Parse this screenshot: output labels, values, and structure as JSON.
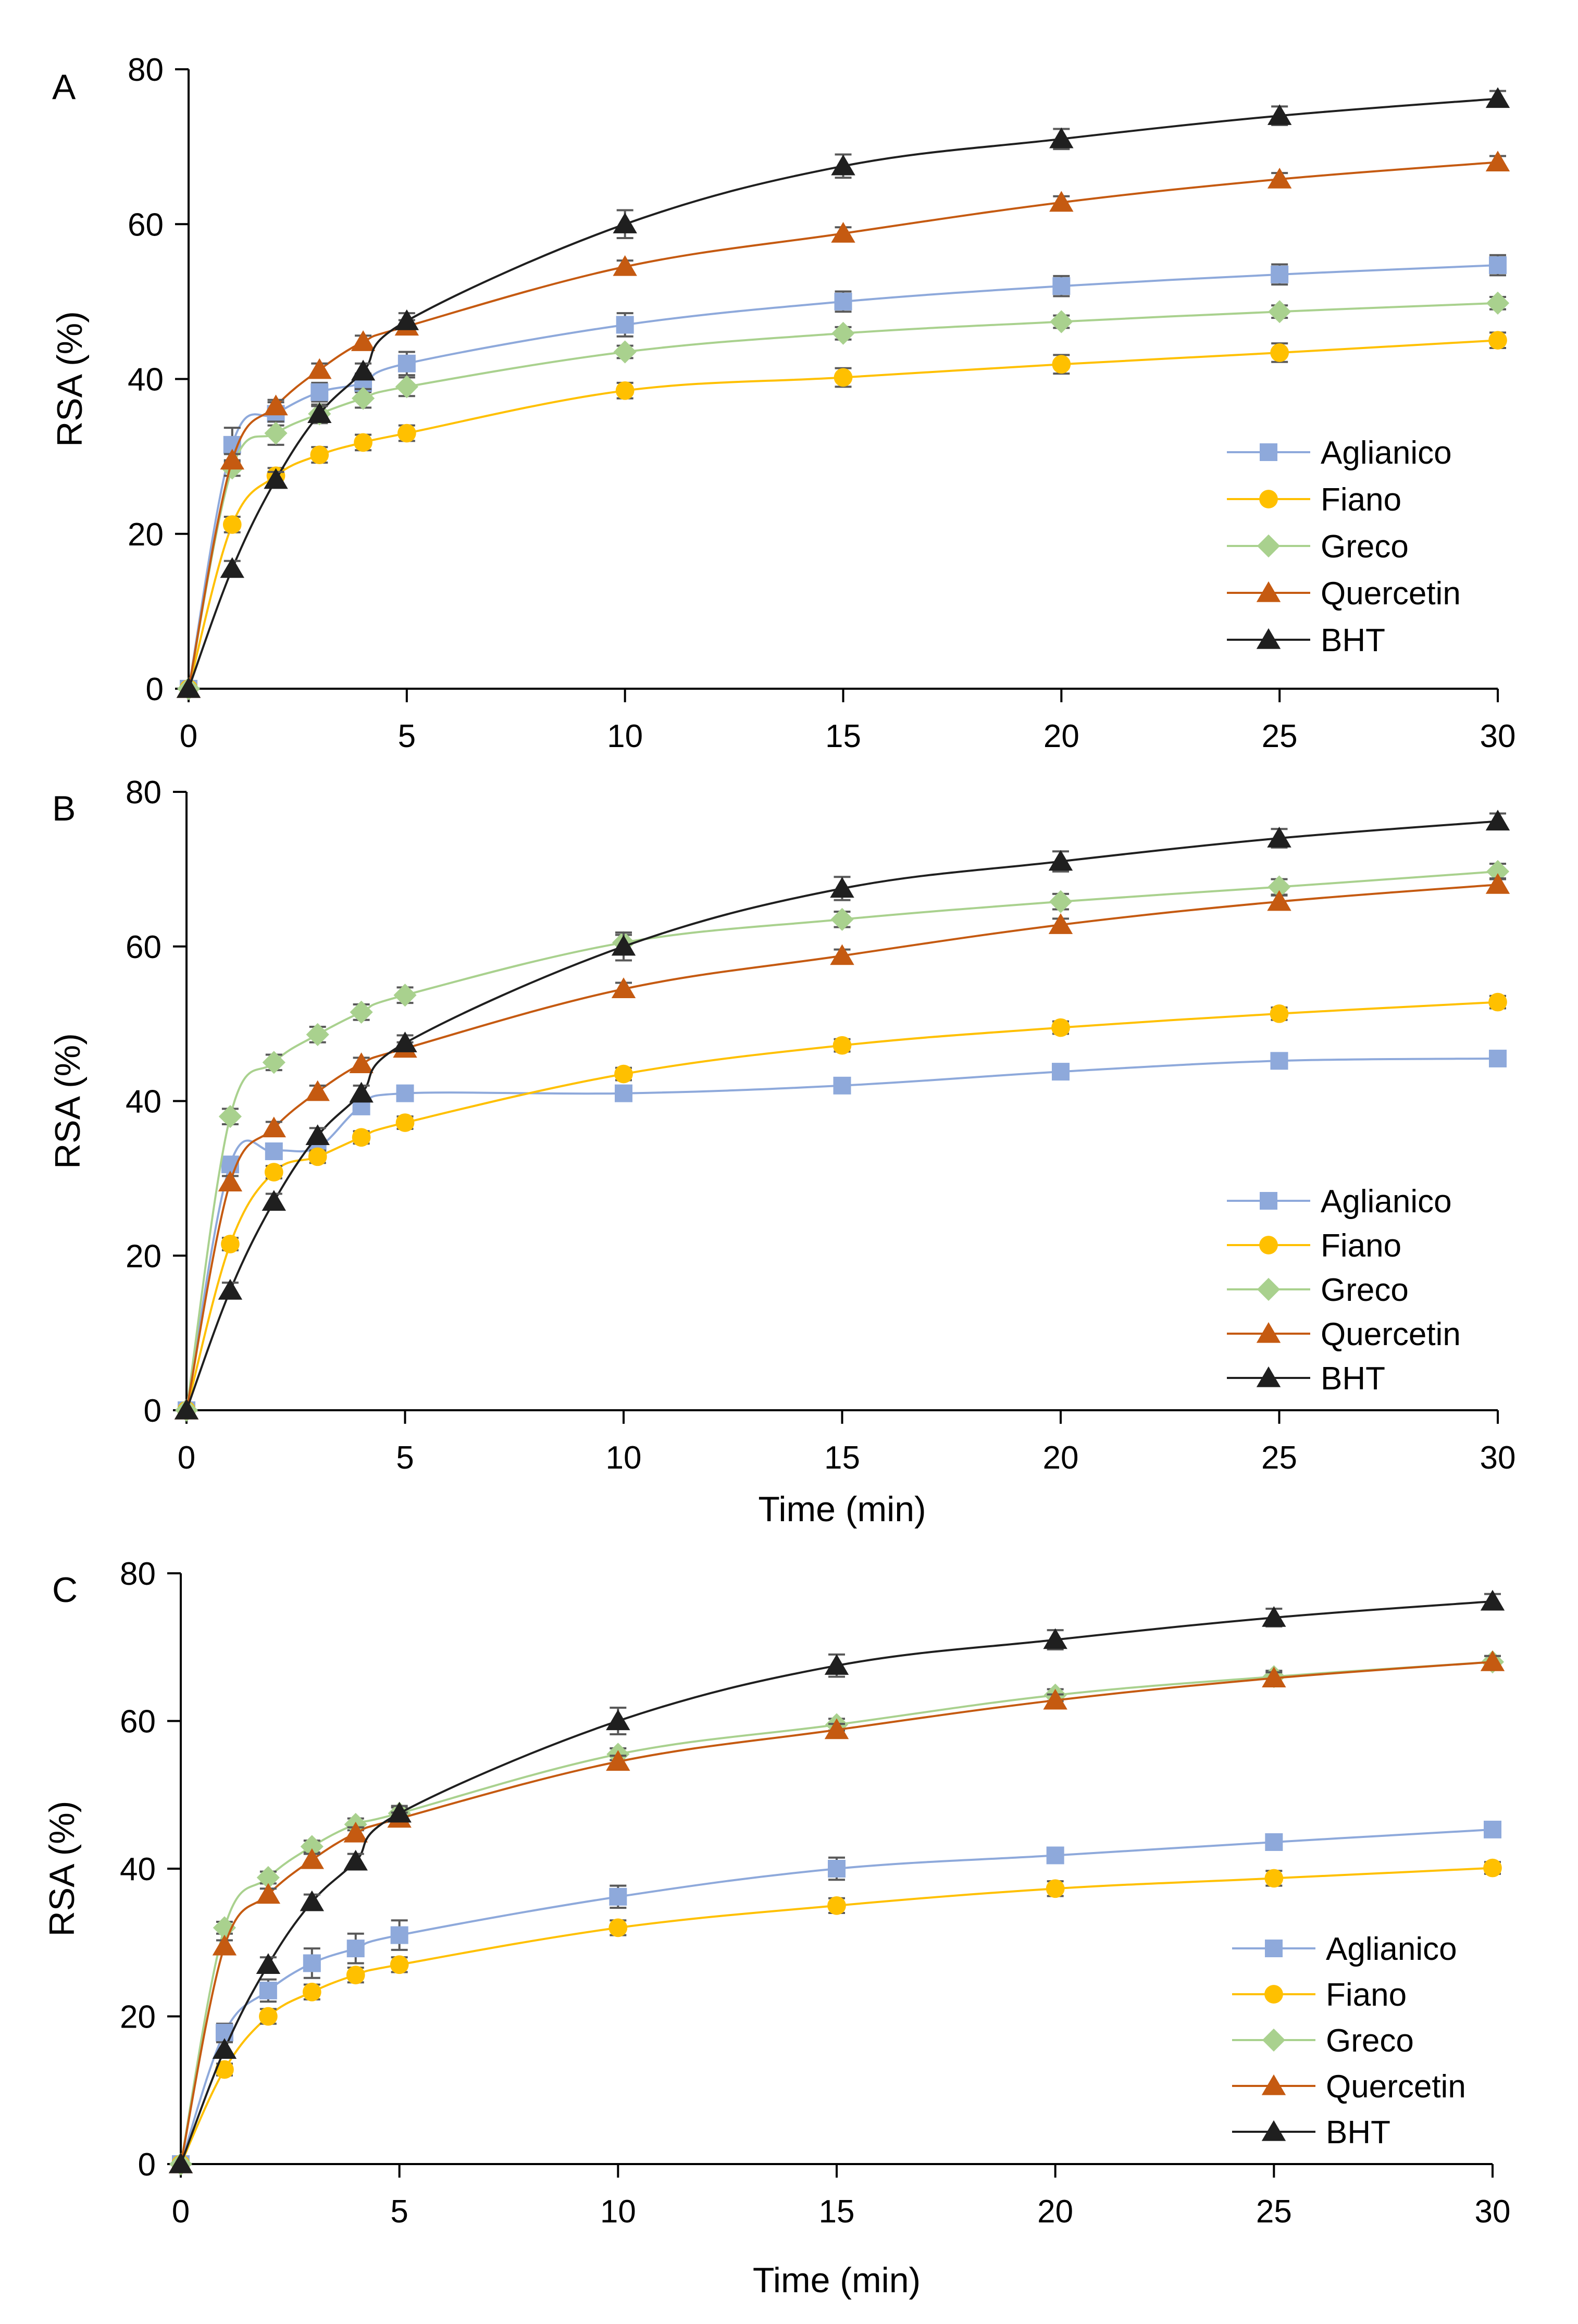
{
  "colors": {
    "Aglianico": "#8EA9DB",
    "Fiano": "#FFC000",
    "Greco": "#A9D18E",
    "Quercetin": "#C55A11",
    "BHT": "#1F1F1F",
    "axis": "#000000",
    "errorbar": "#595959"
  },
  "chart_data": [
    {
      "type": "line",
      "panel_label": "A",
      "xlabel": "",
      "ylabel": "RSA (%)",
      "xlim": [
        0,
        30
      ],
      "ylim": [
        0,
        80
      ],
      "x_ticks": [
        0,
        5,
        10,
        15,
        20,
        25,
        30
      ],
      "y_ticks": [
        0,
        20,
        40,
        60,
        80
      ],
      "grid": false,
      "legend_position": "right",
      "x": [
        0,
        1,
        2,
        3,
        4,
        5,
        10,
        15,
        20,
        25,
        30
      ],
      "series": [
        {
          "name": "Aglianico",
          "marker": "square",
          "values": [
            0,
            31.5,
            35.5,
            38.3,
            39.5,
            42,
            47,
            50,
            52,
            53.5,
            54.7
          ],
          "errors": [
            0,
            2.2,
            1.5,
            1.2,
            1.2,
            1.5,
            1.5,
            1.3,
            1.3,
            1.3,
            1.3
          ]
        },
        {
          "name": "Fiano",
          "marker": "circle",
          "values": [
            0,
            21.2,
            27.5,
            30.2,
            31.8,
            33,
            38.5,
            40.2,
            41.9,
            43.4,
            45
          ],
          "errors": [
            0,
            1,
            1,
            1,
            1,
            1,
            1,
            1.2,
            1.2,
            1.2,
            1
          ]
        },
        {
          "name": "Greco",
          "marker": "diamond",
          "values": [
            0,
            28.5,
            33,
            35.5,
            37.5,
            39,
            43.5,
            45.9,
            47.4,
            48.7,
            49.8
          ],
          "errors": [
            0,
            1,
            1.5,
            1.2,
            1.2,
            1.2,
            0.8,
            0.8,
            0.8,
            0.8,
            0.8
          ]
        },
        {
          "name": "Quercetin",
          "marker": "triangle",
          "values": [
            0,
            29.5,
            36.5,
            41.2,
            44.8,
            46.8,
            54.5,
            58.8,
            62.8,
            65.8,
            68
          ],
          "errors": [
            0,
            0.8,
            0.8,
            0.8,
            0.8,
            0.8,
            0.8,
            0.8,
            0.8,
            0.8,
            0.8
          ]
        },
        {
          "name": "BHT",
          "marker": "triangle",
          "values": [
            0,
            15.5,
            27,
            35.5,
            41,
            47.5,
            60,
            67.5,
            71,
            74,
            76.2
          ],
          "errors": [
            0,
            1,
            1,
            1,
            1,
            1,
            1.8,
            1.5,
            1.3,
            1.2,
            1
          ]
        }
      ]
    },
    {
      "type": "line",
      "panel_label": "B",
      "xlabel": "Time (min)",
      "ylabel": "RSA (%)",
      "xlim": [
        0,
        30
      ],
      "ylim": [
        0,
        80
      ],
      "x_ticks": [
        0,
        5,
        10,
        15,
        20,
        25,
        30
      ],
      "y_ticks": [
        0,
        20,
        40,
        60,
        80
      ],
      "grid": false,
      "legend_position": "right",
      "x": [
        0,
        1,
        2,
        3,
        4,
        5,
        10,
        15,
        20,
        25,
        30
      ],
      "series": [
        {
          "name": "Aglianico",
          "marker": "square",
          "values": [
            0,
            31.8,
            33.5,
            34,
            39.3,
            41,
            41,
            42,
            43.8,
            45.2,
            45.5
          ],
          "errors": [
            0,
            0.8,
            0.8,
            0.8,
            0.8,
            0.8,
            0.8,
            0.8,
            0.8,
            0.8,
            0.8
          ]
        },
        {
          "name": "Fiano",
          "marker": "circle",
          "values": [
            0,
            21.5,
            30.8,
            32.8,
            35.3,
            37.2,
            43.5,
            47.2,
            49.5,
            51.3,
            52.8
          ],
          "errors": [
            0,
            0.8,
            0.8,
            0.8,
            0.8,
            0.8,
            0.8,
            0.8,
            0.8,
            0.8,
            0.8
          ]
        },
        {
          "name": "Greco",
          "marker": "diamond",
          "values": [
            0,
            38,
            45,
            48.6,
            51.5,
            53.7,
            60.5,
            63.5,
            65.8,
            67.7,
            69.7
          ],
          "errors": [
            0,
            1,
            1,
            1,
            1,
            1,
            1,
            1,
            1,
            1,
            1
          ]
        },
        {
          "name": "Quercetin",
          "marker": "triangle",
          "values": [
            0,
            29.5,
            36.5,
            41.2,
            44.8,
            46.8,
            54.5,
            58.8,
            62.8,
            65.8,
            68
          ],
          "errors": [
            0,
            0.8,
            0.8,
            0.8,
            0.8,
            0.8,
            0.8,
            0.8,
            0.8,
            0.8,
            0.8
          ]
        },
        {
          "name": "BHT",
          "marker": "triangle",
          "values": [
            0,
            15.5,
            27,
            35.5,
            41,
            47.5,
            60,
            67.5,
            71,
            74,
            76.2
          ],
          "errors": [
            0,
            1,
            1,
            1,
            1,
            1,
            1.8,
            1.5,
            1.3,
            1.2,
            1
          ]
        }
      ]
    },
    {
      "type": "line",
      "panel_label": "C",
      "xlabel": "Time (min)",
      "ylabel": "RSA (%)",
      "xlim": [
        0,
        30
      ],
      "ylim": [
        0,
        80
      ],
      "x_ticks": [
        0,
        5,
        10,
        15,
        20,
        25,
        30
      ],
      "y_ticks": [
        0,
        20,
        40,
        60,
        80
      ],
      "grid": false,
      "legend_position": "right",
      "x": [
        0,
        1,
        2,
        3,
        4,
        5,
        10,
        15,
        20,
        25,
        30
      ],
      "series": [
        {
          "name": "Aglianico",
          "marker": "square",
          "values": [
            0,
            17.8,
            23.5,
            27.2,
            29.2,
            31,
            36.2,
            40,
            41.8,
            43.6,
            45.3
          ],
          "errors": [
            0,
            1.2,
            1.5,
            2,
            2,
            2,
            1.5,
            1.5,
            1,
            1,
            0.8
          ]
        },
        {
          "name": "Fiano",
          "marker": "circle",
          "values": [
            0,
            12.8,
            20,
            23.3,
            25.6,
            27,
            32,
            35,
            37.3,
            38.7,
            40.1
          ],
          "errors": [
            0,
            0.8,
            1,
            1,
            1,
            1,
            1,
            1,
            1,
            1,
            0.8
          ]
        },
        {
          "name": "Greco",
          "marker": "diamond",
          "values": [
            0,
            32,
            38.8,
            43,
            46,
            47.5,
            55.5,
            59.5,
            63.5,
            66,
            68
          ],
          "errors": [
            0,
            0.8,
            0.8,
            0.8,
            0.8,
            0.8,
            0.8,
            0.8,
            0.8,
            0.8,
            0.8
          ]
        },
        {
          "name": "Quercetin",
          "marker": "triangle",
          "values": [
            0,
            29.5,
            36.5,
            41.2,
            44.8,
            46.8,
            54.5,
            58.8,
            62.8,
            65.8,
            68
          ],
          "errors": [
            0,
            0.8,
            0.8,
            0.8,
            0.8,
            0.8,
            0.8,
            0.8,
            0.8,
            0.8,
            0.8
          ]
        },
        {
          "name": "BHT",
          "marker": "triangle",
          "values": [
            0,
            15.5,
            27,
            35.5,
            41,
            47.5,
            60,
            67.5,
            71,
            74,
            76.2
          ],
          "errors": [
            0,
            1,
            1,
            1,
            1,
            1,
            1.8,
            1.5,
            1.3,
            1.2,
            1
          ]
        }
      ]
    }
  ]
}
